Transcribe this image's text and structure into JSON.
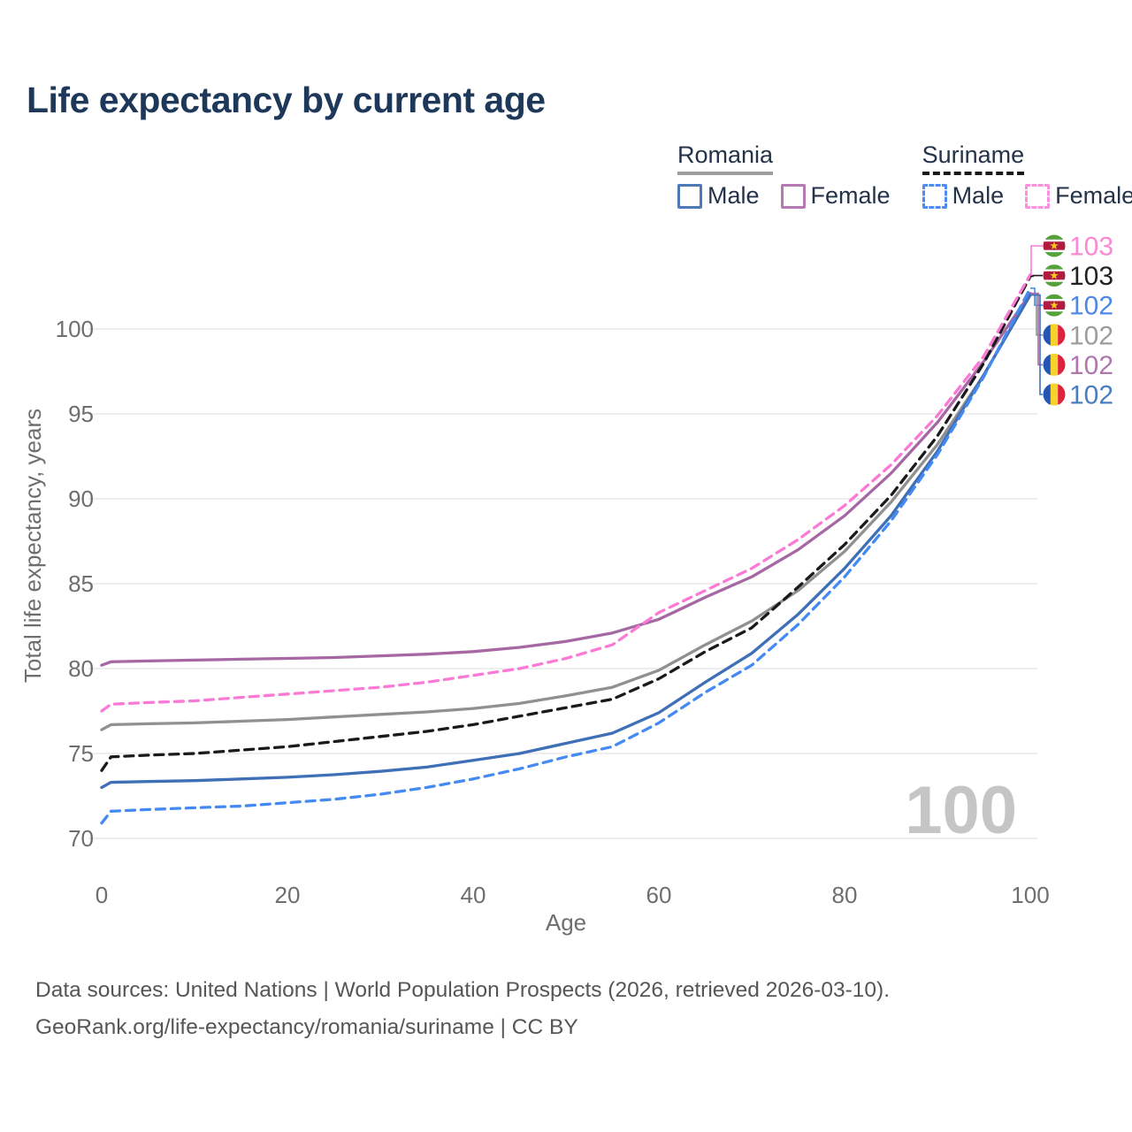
{
  "title": "Life expectancy by current age",
  "watermark_age": "100",
  "legend": {
    "groups": [
      {
        "country": "Romania",
        "line_style": "solid",
        "underline_color": "#9e9e9e",
        "items": [
          {
            "label": "Male",
            "color": "#4e79b7",
            "style": "solid"
          },
          {
            "label": "Female",
            "color": "#b679b3",
            "style": "solid"
          }
        ]
      },
      {
        "country": "Suriname",
        "line_style": "dashed",
        "underline_color": "#1a1a1a",
        "items": [
          {
            "label": "Male",
            "color": "#4e8cf5",
            "style": "dashed"
          },
          {
            "label": "Female",
            "color": "#fc8fe0",
            "style": "dashed"
          }
        ]
      }
    ]
  },
  "footer": {
    "line1": "Data sources: United Nations | World Population Prospects (2026, retrieved 2026-03-10).",
    "line2": "GeoRank.org/life-expectancy/romania/suriname | CC BY"
  },
  "chart_data": {
    "type": "line",
    "title": "Life expectancy by current age",
    "xlabel": "Age",
    "ylabel": "Total life expectancy, years",
    "x_ticks": [
      0,
      20,
      40,
      60,
      80,
      100
    ],
    "y_ticks": [
      70,
      75,
      80,
      85,
      90,
      95,
      100
    ],
    "xlim": [
      0,
      100
    ],
    "ylim": [
      69.5,
      104.5
    ],
    "grid": "horizontal",
    "legend_position": "top-right",
    "ages": [
      0,
      1,
      5,
      10,
      15,
      20,
      25,
      30,
      35,
      40,
      45,
      50,
      55,
      60,
      65,
      70,
      75,
      80,
      85,
      90,
      95,
      100
    ],
    "series": [
      {
        "id": "sr-f",
        "name": "Suriname Female",
        "country": "Suriname",
        "sex": "Female",
        "dashed": true,
        "color": "#fb7ad6",
        "label_color": "#fb87d5",
        "end_label": "103",
        "flag": "suriname",
        "values": [
          77.5,
          77.9,
          78.0,
          78.1,
          78.3,
          78.5,
          78.7,
          78.9,
          79.2,
          79.6,
          80.0,
          80.6,
          81.4,
          83.3,
          84.6,
          85.9,
          87.6,
          89.6,
          92.0,
          94.9,
          98.4,
          103.2
        ]
      },
      {
        "id": "sr-t",
        "name": "Suriname",
        "country": "Suriname",
        "sex": "All",
        "dashed": true,
        "color": "#1a1a1a",
        "label_color": "#222222",
        "end_label": "103",
        "flag": "suriname",
        "values": [
          74.0,
          74.8,
          74.9,
          75.0,
          75.2,
          75.4,
          75.7,
          76.0,
          76.3,
          76.7,
          77.2,
          77.7,
          78.2,
          79.4,
          81.0,
          82.4,
          84.8,
          87.3,
          90.2,
          93.7,
          98.0,
          103.1
        ]
      },
      {
        "id": "sr-m",
        "name": "Suriname Male",
        "country": "Suriname",
        "sex": "Male",
        "dashed": true,
        "color": "#448af2",
        "label_color": "#4e87e6",
        "end_label": "102",
        "flag": "suriname",
        "values": [
          70.9,
          71.6,
          71.7,
          71.8,
          71.9,
          72.1,
          72.3,
          72.6,
          73.0,
          73.5,
          74.1,
          74.8,
          75.4,
          76.8,
          78.6,
          80.2,
          82.6,
          85.4,
          88.7,
          92.6,
          97.2,
          102.4
        ]
      },
      {
        "id": "ro-t",
        "name": "Romania",
        "country": "Romania",
        "sex": "All",
        "dashed": false,
        "color": "#909090",
        "label_color": "#9c9c9c",
        "end_label": "102",
        "flag": "romania",
        "values": [
          76.4,
          76.7,
          76.75,
          76.8,
          76.9,
          77.0,
          77.15,
          77.3,
          77.45,
          77.65,
          77.95,
          78.4,
          78.9,
          79.9,
          81.4,
          82.8,
          84.6,
          86.9,
          89.8,
          93.2,
          97.3,
          102.0
        ]
      },
      {
        "id": "ro-f",
        "name": "Romania Female",
        "country": "Romania",
        "sex": "Female",
        "dashed": false,
        "color": "#a668a3",
        "label_color": "#b077ad",
        "end_label": "102",
        "flag": "romania",
        "values": [
          80.2,
          80.4,
          80.45,
          80.5,
          80.55,
          80.6,
          80.65,
          80.75,
          80.85,
          81.0,
          81.25,
          81.6,
          82.1,
          82.9,
          84.2,
          85.4,
          87.0,
          89.0,
          91.5,
          94.5,
          98.1,
          102.1
        ]
      },
      {
        "id": "ro-m",
        "name": "Romania Male",
        "country": "Romania",
        "sex": "Male",
        "dashed": false,
        "color": "#3e6fb7",
        "label_color": "#4a7dc0",
        "end_label": "102",
        "flag": "romania",
        "values": [
          73.0,
          73.3,
          73.35,
          73.4,
          73.5,
          73.6,
          73.75,
          73.95,
          74.2,
          74.6,
          75.0,
          75.6,
          76.2,
          77.4,
          79.2,
          80.9,
          83.2,
          85.9,
          89.0,
          92.8,
          97.3,
          102.0
        ]
      }
    ],
    "flag_colors": {
      "romania": {
        "blue": "#2456b4",
        "yellow": "#f6d32a",
        "red": "#e0213d"
      },
      "suriname": {
        "green": "#55a23d",
        "white": "#ffffff",
        "red": "#b01c3f",
        "star": "#f2cb1d"
      }
    }
  }
}
